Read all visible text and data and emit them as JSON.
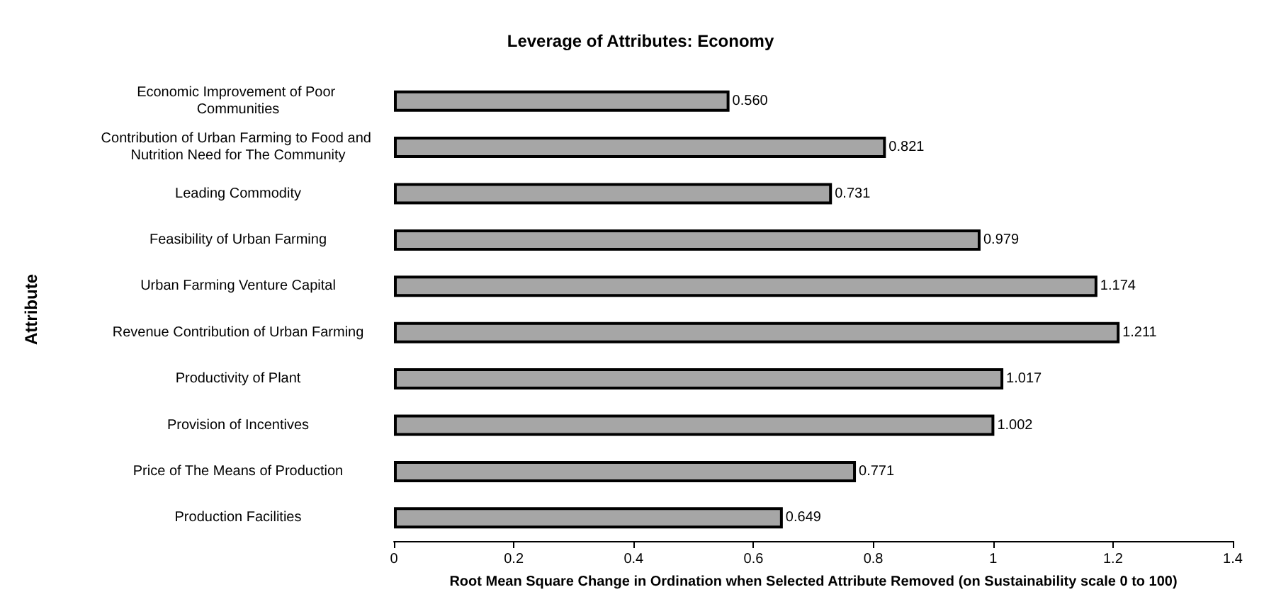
{
  "chart_data": {
    "type": "bar",
    "orientation": "horizontal",
    "title": "Leverage of Attributes: Economy",
    "xlabel": "Root Mean Square Change in Ordination when Selected Attribute Removed (on Sustainability scale 0 to 100)",
    "ylabel": "Attribute",
    "categories": [
      "Economic Improvement of Poor Communities",
      "Contribution of Urban Farming to Food and Nutrition Need for The Community",
      "Leading Commodity",
      "Feasibility of Urban Farming",
      "Urban Farming Venture Capital",
      "Revenue Contribution of Urban Farming",
      "Productivity of Plant",
      "Provision of Incentives",
      "Price of The Means of Production",
      "Production Facilities"
    ],
    "values": [
      0.56,
      0.821,
      0.731,
      0.979,
      1.174,
      1.211,
      1.017,
      1.002,
      0.771,
      0.649
    ],
    "value_labels": [
      "0.560",
      "0.821",
      "0.731",
      "0.979",
      "1.174",
      "1.211",
      "1.017",
      "1.002",
      "0.771",
      "0.649"
    ],
    "color": "#a6a6a6",
    "xlim": [
      0,
      1.4
    ],
    "xticks": [
      0,
      0.2,
      0.4,
      0.6,
      0.8,
      1,
      1.2,
      1.4
    ],
    "grid": false
  }
}
